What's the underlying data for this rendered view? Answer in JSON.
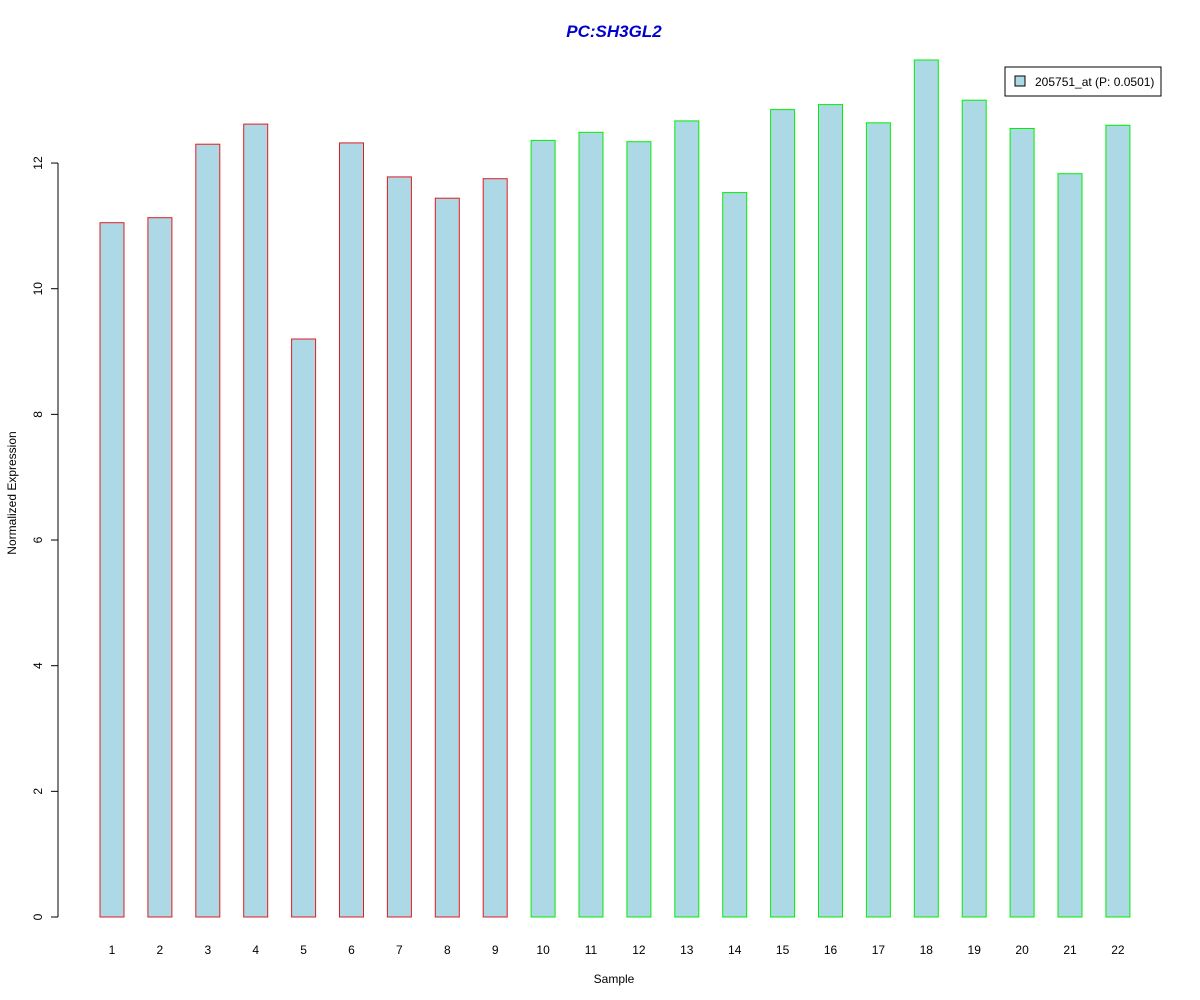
{
  "chart_data": {
    "type": "bar",
    "title": "PC:SH3GL2",
    "title_color": "#0000CD",
    "xlabel": "Sample",
    "ylabel": "Normalized Expression",
    "categories": [
      "1",
      "2",
      "3",
      "4",
      "5",
      "6",
      "7",
      "8",
      "9",
      "10",
      "11",
      "12",
      "13",
      "14",
      "15",
      "16",
      "17",
      "18",
      "19",
      "20",
      "21",
      "22"
    ],
    "series": [
      {
        "name": "205751_at (P: 0.0501)",
        "values": [
          11.05,
          11.13,
          12.3,
          12.62,
          9.2,
          12.32,
          11.78,
          11.44,
          11.75,
          12.36,
          12.49,
          12.34,
          12.67,
          11.53,
          12.85,
          12.93,
          12.64,
          13.64,
          13.0,
          12.55,
          11.83,
          12.6
        ]
      }
    ],
    "groups": [
      {
        "samples": [
          1,
          2,
          3,
          4,
          5,
          6,
          7,
          8,
          9
        ],
        "border_color": "#E41A1C"
      },
      {
        "samples": [
          10,
          11,
          12,
          13,
          14,
          15,
          16,
          17,
          18,
          19,
          20,
          21,
          22
        ],
        "border_color": "#00EE00"
      }
    ],
    "bar_fill": "#ADD8E6",
    "ylim": [
      0,
      13.64
    ],
    "yticks": [
      0,
      2,
      4,
      6,
      8,
      10,
      12
    ],
    "grid": false,
    "legend": {
      "label": "205751_at (P: 0.0501)",
      "placement": "top-right"
    }
  }
}
